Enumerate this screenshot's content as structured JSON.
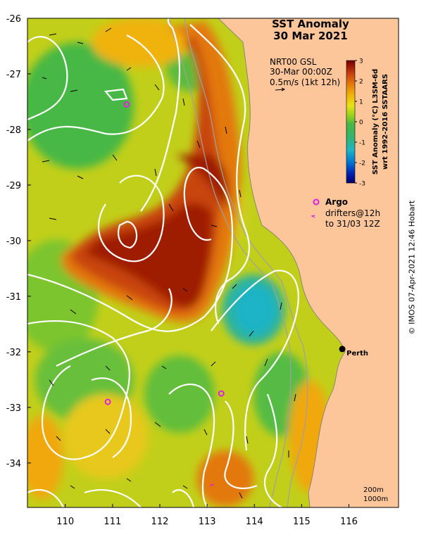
{
  "title": {
    "line1": "SST Anomaly",
    "line2": "30 Mar 2021"
  },
  "product": {
    "line1": "NRT00 GSL",
    "line2": "30-Mar 00:00Z",
    "line3": "0.5m/s (1kt 12h)"
  },
  "colorbar": {
    "label1": "SST Anomaly (°C) L3SM-6d",
    "label2": "wrt 1992-2016 SSTAARS",
    "ticks": [
      "3",
      "2",
      "1",
      "0",
      "-1",
      "-2",
      "-3"
    ],
    "range": [
      -3,
      3
    ],
    "colors": [
      "#00006e",
      "#0022b4",
      "#0077d2",
      "#1fb4c6",
      "#35b56a",
      "#46b845",
      "#95d21c",
      "#e6e317",
      "#f0b20b",
      "#e3780a",
      "#c84410",
      "#9e1a05",
      "#6d0000"
    ]
  },
  "legend": {
    "argo": "Argo",
    "drifters": "drifters@12h",
    "drifters2": "to 31/03 12Z"
  },
  "city": {
    "name": "Perth",
    "lon": 115.86,
    "lat": -31.95
  },
  "argo_floats": [
    {
      "lon": 111.3,
      "lat": -27.55
    },
    {
      "lon": 110.9,
      "lat": -32.9
    },
    {
      "lon": 113.3,
      "lat": -32.75
    }
  ],
  "depth_labels": {
    "d1": "200m",
    "d2": "1000m"
  },
  "axes": {
    "lat_ticks": [
      "-26",
      "-27",
      "-28",
      "-29",
      "-30",
      "-31",
      "-32",
      "-33",
      "-34"
    ],
    "lon_ticks": [
      "110",
      "111",
      "112",
      "113",
      "114",
      "115",
      "116"
    ]
  },
  "credit": "© IMOS 07-Apr-2021 12:46 Hobart",
  "colors": {
    "land": "#fdc69a",
    "argo": "#e020e0",
    "contour": "#ffffff",
    "coast": "#a0a0a0"
  }
}
